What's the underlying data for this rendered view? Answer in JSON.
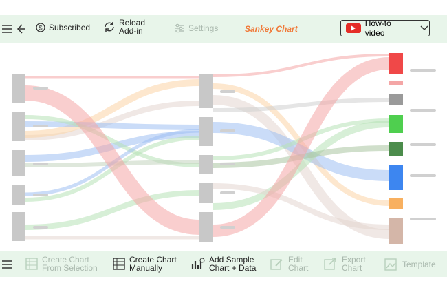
{
  "top_toolbar": {
    "subscribed": "Subscribed",
    "reload": [
      "Reload",
      "Add-in"
    ],
    "settings": "Settings",
    "title": "Sankey Chart",
    "video_button": "How-to video"
  },
  "bottom_toolbar": {
    "buttons": [
      [
        "Create Chart",
        "From Selection"
      ],
      [
        "Create Chart",
        "Manually"
      ],
      [
        "Add Sample",
        "Chart + Data"
      ],
      [
        "Edit",
        "Chart"
      ],
      [
        "Export",
        "Chart"
      ],
      [
        "Template"
      ]
    ]
  }
}
